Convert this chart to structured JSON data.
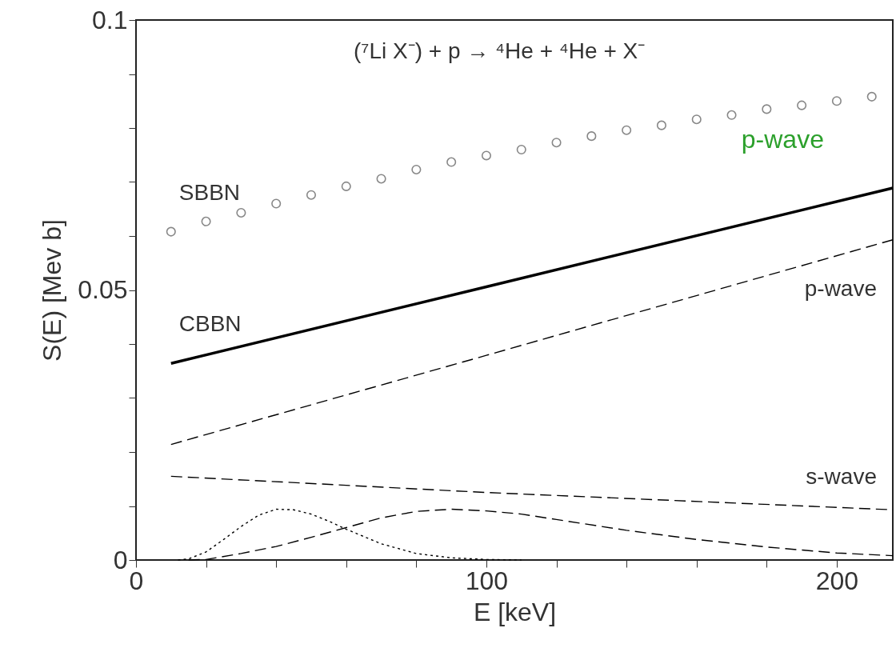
{
  "chart_data": {
    "type": "line",
    "xlabel": "E [keV]",
    "ylabel": "S(E) [Mev b]",
    "xlim": [
      0,
      216
    ],
    "xticks": [
      0,
      {
        "value": 20,
        "label": null
      },
      {
        "value": 40,
        "label": null
      },
      {
        "value": 60,
        "label": null
      },
      {
        "value": 80,
        "label": null
      },
      100,
      {
        "value": 120,
        "label": null
      },
      {
        "value": 140,
        "label": null
      },
      {
        "value": 160,
        "label": null
      },
      {
        "value": 180,
        "label": null
      },
      200
    ],
    "ylim": [
      0,
      0.1
    ],
    "yticks": [
      0,
      {
        "value": 0.01,
        "label": null
      },
      {
        "value": 0.02,
        "label": null
      },
      {
        "value": 0.03,
        "label": null
      },
      {
        "value": 0.04,
        "label": null
      },
      0.05,
      {
        "value": 0.06,
        "label": null
      },
      {
        "value": 0.07,
        "label": null
      },
      {
        "value": 0.08,
        "label": null
      },
      {
        "value": 0.09,
        "label": null
      },
      0.1
    ],
    "grid": false,
    "legend": false,
    "annotations": [
      "(⁷Li X⁻) + p  → ⁴He + ⁴He + X⁻",
      "p-wave"
    ],
    "series": [
      {
        "name": "SBBN",
        "type": "scatter",
        "marker": "circle",
        "color": "#555555",
        "x": [
          10,
          20,
          30,
          40,
          50,
          60,
          70,
          80,
          90,
          100,
          110,
          120,
          130,
          140,
          150,
          160,
          170,
          180,
          190,
          200,
          210
        ],
        "values": [
          0.0608,
          0.0627,
          0.0643,
          0.066,
          0.0676,
          0.0692,
          0.0706,
          0.0723,
          0.0737,
          0.0749,
          0.076,
          0.0773,
          0.0785,
          0.0796,
          0.0805,
          0.0816,
          0.0824,
          0.0835,
          0.0842,
          0.085,
          0.0858
        ]
      },
      {
        "name": "CBBN",
        "line_style": "solid",
        "color": "#000000",
        "x": [
          10,
          100,
          216
        ],
        "values": [
          0.0364,
          0.0506,
          0.0689
        ]
      },
      {
        "name": "p-wave",
        "line_style": "dashed",
        "color": "#000000",
        "x": [
          10,
          100,
          216
        ],
        "values": [
          0.0214,
          0.0379,
          0.0593
        ]
      },
      {
        "name": "s-wave",
        "line_style": "dashed",
        "color": "#000000",
        "x": [
          10,
          100,
          216
        ],
        "values": [
          0.0155,
          0.0125,
          0.0093
        ]
      },
      {
        "line_style": "dotted",
        "color": "#000000",
        "x": [
          12,
          15,
          20,
          25,
          30,
          35,
          40,
          45,
          50,
          55,
          60,
          70,
          80,
          90,
          100,
          110
        ],
        "values": [
          0,
          0.0002,
          0.0015,
          0.0038,
          0.0062,
          0.0083,
          0.0094,
          0.0093,
          0.0085,
          0.0072,
          0.0057,
          0.003,
          0.0012,
          0.0004,
          0.0001,
          0
        ]
      },
      {
        "line_style": "dashed",
        "color": "#000000",
        "x": [
          15,
          20,
          30,
          40,
          50,
          60,
          70,
          80,
          90,
          100,
          110,
          120,
          140,
          160,
          180,
          200,
          216
        ],
        "values": [
          0,
          0.0001,
          0.0012,
          0.0025,
          0.0042,
          0.006,
          0.0078,
          0.009,
          0.0094,
          0.0091,
          0.0085,
          0.0075,
          0.0055,
          0.0038,
          0.0024,
          0.0013,
          0.0008
        ]
      }
    ]
  }
}
